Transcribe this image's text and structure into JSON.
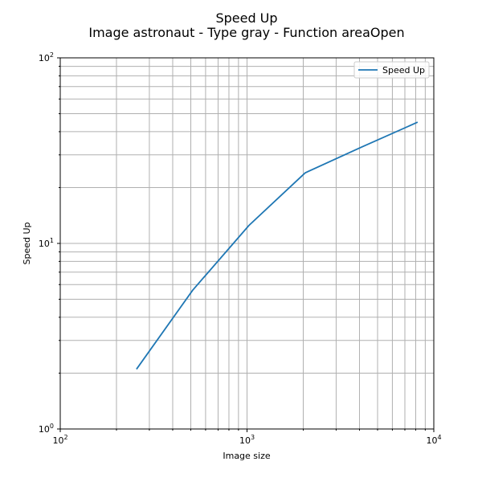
{
  "chart_data": {
    "type": "line",
    "title": "Speed Up",
    "subtitle": "Image astronaut - Type gray - Function areaOpen",
    "xlabel": "Image size",
    "ylabel": "Speed Up",
    "xscale": "log",
    "yscale": "log",
    "xlim": [
      100,
      10000
    ],
    "ylim": [
      1,
      100
    ],
    "grid": true,
    "legend": "top-right",
    "x_ticks": [
      {
        "base": "10",
        "exp": "2"
      },
      {
        "base": "10",
        "exp": "3"
      },
      {
        "base": "10",
        "exp": "4"
      }
    ],
    "y_ticks": [
      {
        "base": "10",
        "exp": "0"
      },
      {
        "base": "10",
        "exp": "1"
      },
      {
        "base": "10",
        "exp": "2"
      }
    ],
    "series": [
      {
        "name": "Speed Up",
        "color": "#1f77b4",
        "x": [
          256,
          512,
          1024,
          2048,
          4096,
          8192
        ],
        "y": [
          2.1,
          5.6,
          12.5,
          24,
          33,
          45
        ]
      }
    ]
  }
}
